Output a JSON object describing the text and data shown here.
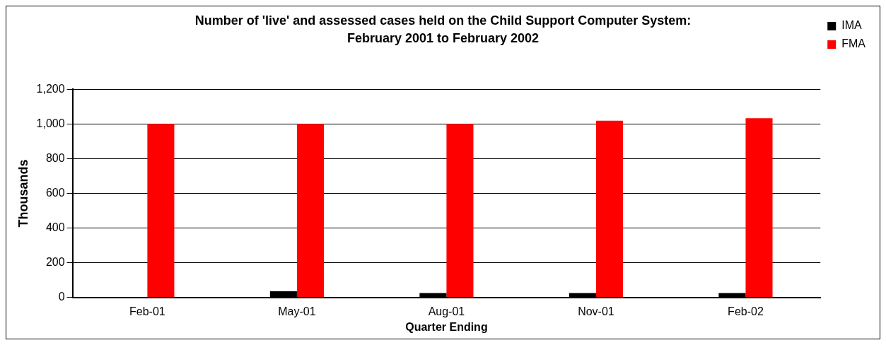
{
  "chart_data": {
    "type": "bar",
    "title": "Number of 'live' and assessed cases held on the Child Support Computer System:",
    "subtitle": "February 2001 to February 2002",
    "xlabel": "Quarter Ending",
    "ylabel": "Thousands",
    "categories": [
      "Feb-01",
      "May-01",
      "Aug-01",
      "Nov-01",
      "Feb-02"
    ],
    "series": [
      {
        "name": "IMA",
        "color": "#000000",
        "values": [
          0,
          35,
          25,
          25,
          25
        ]
      },
      {
        "name": "FMA",
        "color": "#ff0000",
        "values": [
          1000,
          1000,
          1000,
          1018,
          1033
        ]
      }
    ],
    "ylim": [
      0,
      1200
    ],
    "yticks": [
      0,
      200,
      400,
      600,
      800,
      {
        "value": 1000,
        "label": "1,000"
      },
      {
        "value": 1200,
        "label": "1,200"
      }
    ],
    "grid": "y",
    "legend": "right"
  }
}
